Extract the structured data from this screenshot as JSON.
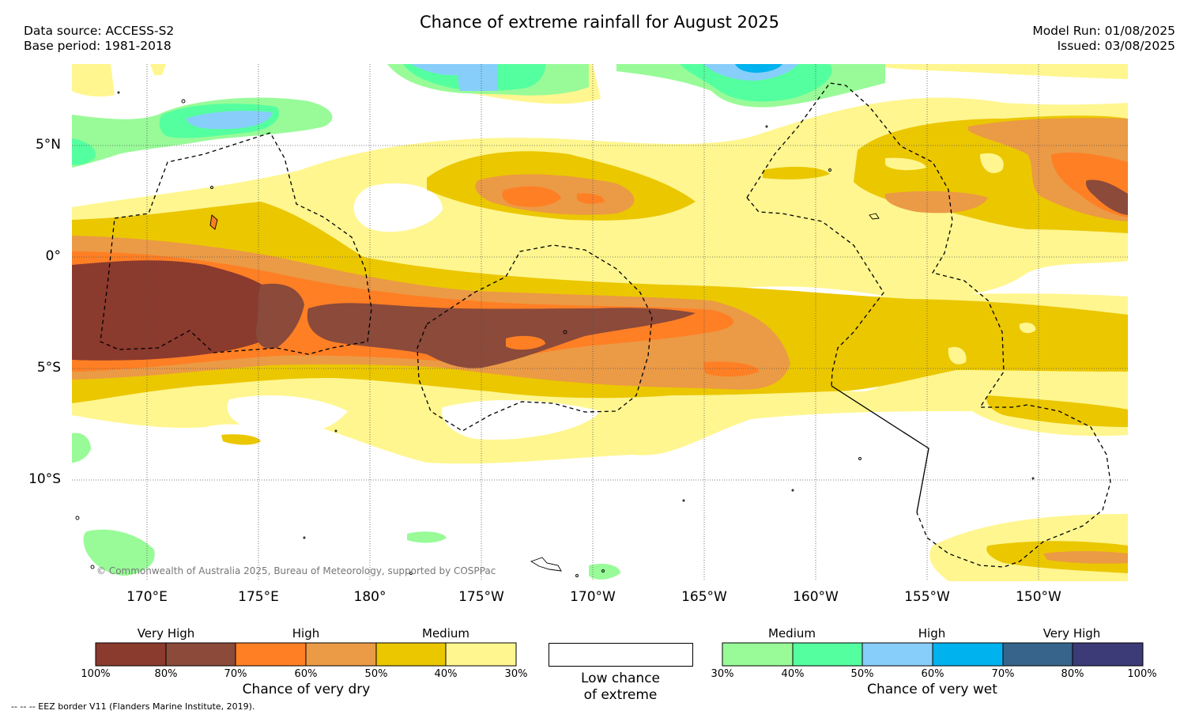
{
  "title": "Chance of extreme rainfall for August 2025",
  "data_source": "Data source: ACCESS-S2",
  "base_period": "Base period: 1981-2018",
  "model_run": "Model Run: 01/08/2025",
  "issued": "Issued: 03/08/2025",
  "map": {
    "lat_ticks": [
      "5°N",
      "0°",
      "5°S",
      "10°S"
    ],
    "lon_ticks": [
      "170°E",
      "175°E",
      "180°",
      "175°W",
      "170°W",
      "165°W",
      "160°W",
      "155°W",
      "150°W"
    ],
    "copyright": "© Commonwealth of Australia 2025, Bureau of Meteorology, supported by COSPPac"
  },
  "legend": {
    "dry": {
      "categories": [
        "Very High",
        "High",
        "Medium"
      ],
      "colors": [
        "#8b3a2e",
        "#8b4a3a",
        "#ff7f24",
        "#eb9a46",
        "#ebc700",
        "#fff68f"
      ],
      "labels": [
        "100%",
        "80%",
        "70%",
        "60%",
        "50%",
        "40%",
        "30%"
      ],
      "title": "Chance of very dry"
    },
    "low": {
      "title_line1": "Low chance",
      "title_line2": "of extreme"
    },
    "wet": {
      "categories": [
        "Medium",
        "High",
        "Very High"
      ],
      "colors": [
        "#98fb98",
        "#54ff9f",
        "#87cefa",
        "#00b2ee",
        "#36648b",
        "#3d3a78"
      ],
      "labels": [
        "30%",
        "40%",
        "50%",
        "60%",
        "70%",
        "80%",
        "100%"
      ],
      "title": "Chance of very wet"
    }
  },
  "footnote": "-- -- -- EEZ border V11 (Flanders Marine Institute, 2019)."
}
